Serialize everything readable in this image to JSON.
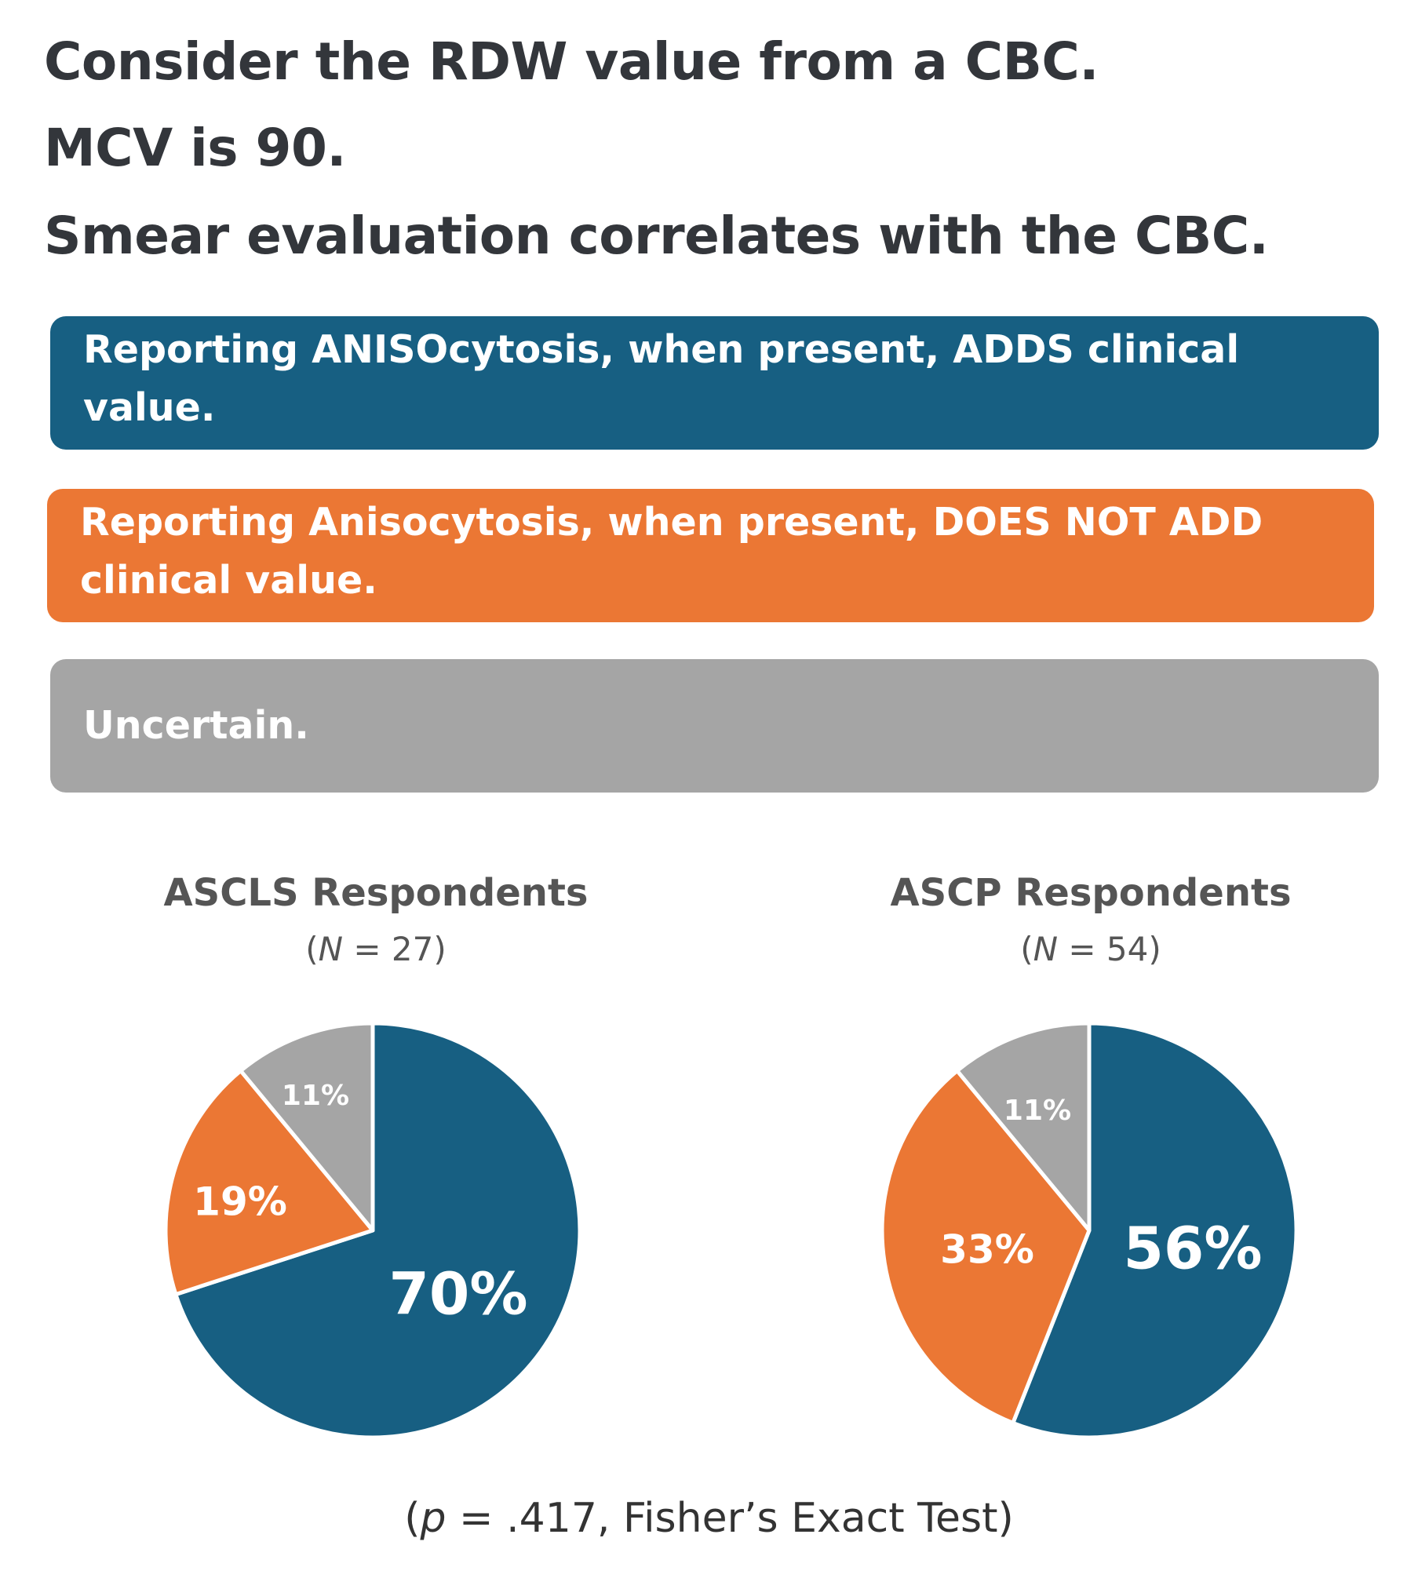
{
  "question": {
    "lines": [
      "Consider the RDW value from a CBC.",
      "MCV is 90.",
      "Smear evaluation correlates with the CBC."
    ]
  },
  "options": [
    {
      "label": "Reporting ANISOcytosis, when present, ADDS clinical value.",
      "color": "#175f82"
    },
    {
      "label": "Reporting Anisocytosis, when present, DOES NOT ADD clinical value.",
      "color": "#eb7734"
    },
    {
      "label": "Uncertain.",
      "color": "#a5a5a5"
    }
  ],
  "chart_data": [
    {
      "type": "pie",
      "title": "ASCLS Respondents",
      "subtitle_prefix": "(",
      "subtitle_n": "N",
      "subtitle_rest": " = 27)",
      "categories": [
        "Adds clinical value",
        "Does not add clinical value",
        "Uncertain"
      ],
      "values": [
        70,
        19,
        11
      ],
      "labels": [
        "70%",
        "19%",
        "11%"
      ],
      "colors": [
        "#175f82",
        "#eb7734",
        "#a5a5a5"
      ]
    },
    {
      "type": "pie",
      "title": "ASCP Respondents",
      "subtitle_prefix": "(",
      "subtitle_n": "N",
      "subtitle_rest": " = 54)",
      "categories": [
        "Adds clinical value",
        "Does not add clinical value",
        "Uncertain"
      ],
      "values": [
        56,
        33,
        11
      ],
      "labels": [
        "56%",
        "33%",
        "11%"
      ],
      "colors": [
        "#175f82",
        "#eb7734",
        "#a5a5a5"
      ]
    }
  ],
  "footer": {
    "open": "(",
    "p": "p",
    "rest": " = .417, Fisher’s Exact Test)"
  }
}
